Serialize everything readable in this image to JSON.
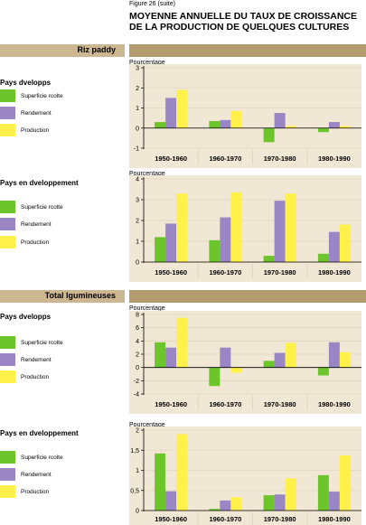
{
  "figure": {
    "label": "Figure 26 (suite)",
    "title_line1": "MOYENNE ANNUELLE DU TAUX DE CROISSANCE",
    "title_line2": "DE LA PRODUCTION DE QUELQUES CULTURES"
  },
  "sections": {
    "riz": "Riz paddy",
    "legumineuses": "Total lgumineuses"
  },
  "groups": {
    "dev": "Pays dvelopps",
    "dev_en": "Pays en dveloppement"
  },
  "legend": {
    "superficie": "Superficie rcolte",
    "rendement": "Rendement",
    "production": "Production"
  },
  "colors": {
    "superficie": "#6cc52a",
    "rendement": "#9a86c4",
    "production": "#fff04a",
    "plot_bg": "#f0e7d4",
    "grid": "#e3d7bc",
    "section_left": "#cdb792",
    "section_right": "#b59a6d"
  },
  "chart_data": [
    {
      "type": "bar",
      "ylabel": "Pourcentage",
      "categories": [
        "1950-1960",
        "1960-1970",
        "1970-1980",
        "1980-1990"
      ],
      "ylim": [
        -1,
        3
      ],
      "yticks": [
        "3",
        "2",
        "1",
        "0",
        "-1"
      ],
      "series": [
        {
          "name": "Superficie rcolte",
          "values": [
            0.3,
            0.35,
            -0.7,
            -0.2
          ]
        },
        {
          "name": "Rendement",
          "values": [
            1.5,
            0.4,
            0.75,
            0.3
          ]
        },
        {
          "name": "Production",
          "values": [
            1.9,
            0.85,
            0.1,
            0.1
          ]
        }
      ]
    },
    {
      "type": "bar",
      "ylabel": "Pourcentage",
      "categories": [
        "1950-1960",
        "1960-1970",
        "1970-1980",
        "1980-1990"
      ],
      "ylim": [
        0,
        4
      ],
      "yticks": [
        "4",
        "3",
        "2",
        "1",
        "0"
      ],
      "series": [
        {
          "name": "Superficie rcolte",
          "values": [
            1.2,
            1.05,
            0.3,
            0.4
          ]
        },
        {
          "name": "Rendement",
          "values": [
            1.85,
            2.15,
            2.95,
            1.45
          ]
        },
        {
          "name": "Production",
          "values": [
            3.3,
            3.35,
            3.3,
            1.8
          ]
        }
      ]
    },
    {
      "type": "bar",
      "ylabel": "Pourcentage",
      "categories": [
        "1950-1960",
        "1960-1970",
        "1970-1980",
        "1980-1990"
      ],
      "ylim": [
        -4,
        8
      ],
      "yticks": [
        "8",
        "6",
        "4",
        "2",
        "0",
        "-2",
        "-4"
      ],
      "series": [
        {
          "name": "Superficie rcolte",
          "values": [
            3.8,
            -2.8,
            1.0,
            -1.2
          ]
        },
        {
          "name": "Rendement",
          "values": [
            3.0,
            3.0,
            2.2,
            3.8
          ]
        },
        {
          "name": "Production",
          "values": [
            7.5,
            -0.8,
            3.7,
            2.3
          ]
        }
      ]
    },
    {
      "type": "bar",
      "ylabel": "Pourcentage",
      "categories": [
        "1950-1960",
        "1960-1970",
        "1970-1980",
        "1980-1990"
      ],
      "ylim": [
        0,
        2
      ],
      "yticks": [
        "2",
        "1,5",
        "1",
        "0,5",
        "0"
      ],
      "series": [
        {
          "name": "Superficie rcolte",
          "values": [
            1.42,
            0.04,
            0.38,
            0.88
          ]
        },
        {
          "name": "Rendement",
          "values": [
            0.48,
            0.25,
            0.4,
            0.47
          ]
        },
        {
          "name": "Production",
          "values": [
            1.9,
            0.33,
            0.8,
            1.37
          ]
        }
      ]
    }
  ]
}
